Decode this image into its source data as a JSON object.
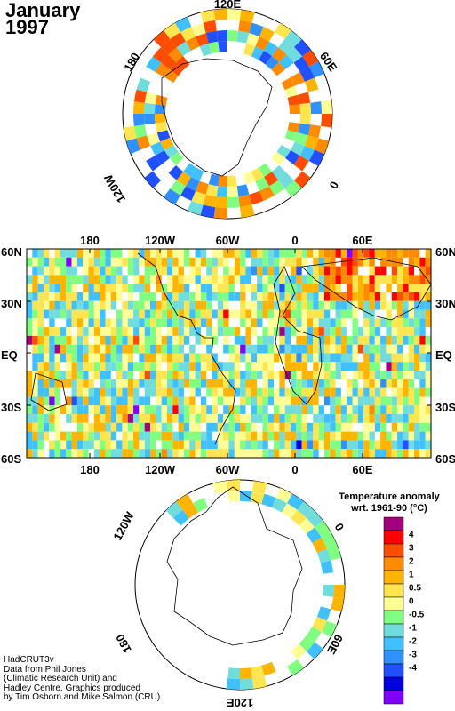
{
  "title": {
    "month": "January",
    "year": "1997"
  },
  "north_pole_labels": {
    "top": "120E",
    "upper_right": "60E",
    "right": "0",
    "upper_left": "180",
    "lower_left": "120W"
  },
  "map_lat_labels": {
    "left": [
      "60N",
      "30N",
      "EQ",
      "30S",
      "60S"
    ],
    "right": [
      "60N",
      "30N",
      "EQ",
      "30S",
      "60S"
    ]
  },
  "map_lon_labels": {
    "top": [
      "180",
      "120W",
      "60W",
      "0",
      "60E"
    ],
    "bottom": [
      "180",
      "120W",
      "60W",
      "0",
      "60E"
    ]
  },
  "south_pole_labels": {
    "upper_left": "120W",
    "right": "0",
    "lower_left": "180",
    "lower_right": "60E",
    "bottom": "120E"
  },
  "legend": {
    "title_line1": "Temperature anomaly",
    "title_line2": "wrt. 1961-90  (°C)",
    "colors": [
      "#a3007e",
      "#ff0000",
      "#ff4d00",
      "#ff8c00",
      "#ffb400",
      "#ffe650",
      "#ffff96",
      "#80ff80",
      "#70dcdc",
      "#40c0ff",
      "#3090ff",
      "#2050ff",
      "#0000e0",
      "#8000ff"
    ],
    "ticks": [
      "4",
      "3",
      "2",
      "1",
      "0.5",
      "0",
      "-0.5",
      "-1",
      "-2",
      "-3",
      "-4"
    ]
  },
  "credits": [
    "HadCRUT3v",
    "Data from Phil Jones",
    "(Climatic Research Unit) and",
    "Hadley Centre.  Graphics produced",
    "by Tim Osborn and Mike Salmon (CRU)."
  ]
}
